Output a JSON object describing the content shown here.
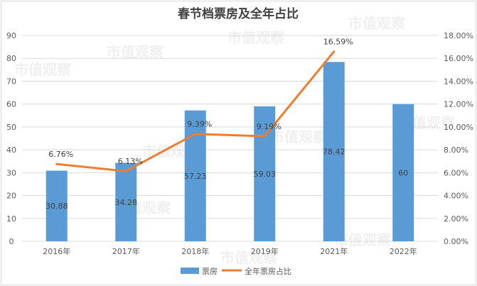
{
  "watermark": "市值观察",
  "colors": {
    "bar": "#5B9BD5",
    "line": "#ED7D31",
    "grid": "#d9d9d9"
  },
  "chart_data": {
    "type": "bar",
    "title": "春节档票房及全年占比",
    "categories": [
      "2016年",
      "2017年",
      "2018年",
      "2019年",
      "2021年",
      "2022年"
    ],
    "series": [
      {
        "name": "票房",
        "type": "bar",
        "axis": "left",
        "values": [
          30.88,
          34.28,
          57.23,
          59.03,
          78.42,
          60
        ],
        "labels": [
          "30.88",
          "34.28",
          "57.23",
          "59.03",
          "78.42",
          "60"
        ]
      },
      {
        "name": "全年票房占比",
        "type": "line",
        "axis": "right",
        "values": [
          6.76,
          6.13,
          9.39,
          9.19,
          16.59,
          null
        ],
        "labels": [
          "6.76%",
          "6.13%",
          "9.39%",
          "9.19%",
          "16.59%",
          ""
        ]
      }
    ],
    "ylim": [
      0,
      90
    ],
    "yticks": [
      "0",
      "10",
      "20",
      "30",
      "40",
      "50",
      "60",
      "70",
      "80",
      "90"
    ],
    "y2lim": [
      0,
      18
    ],
    "y2ticks": [
      "0.00%",
      "2.00%",
      "4.00%",
      "6.00%",
      "8.00%",
      "10.00%",
      "12.00%",
      "14.00%",
      "16.00%",
      "18.00%"
    ],
    "grid": true,
    "legend": "bottom"
  }
}
